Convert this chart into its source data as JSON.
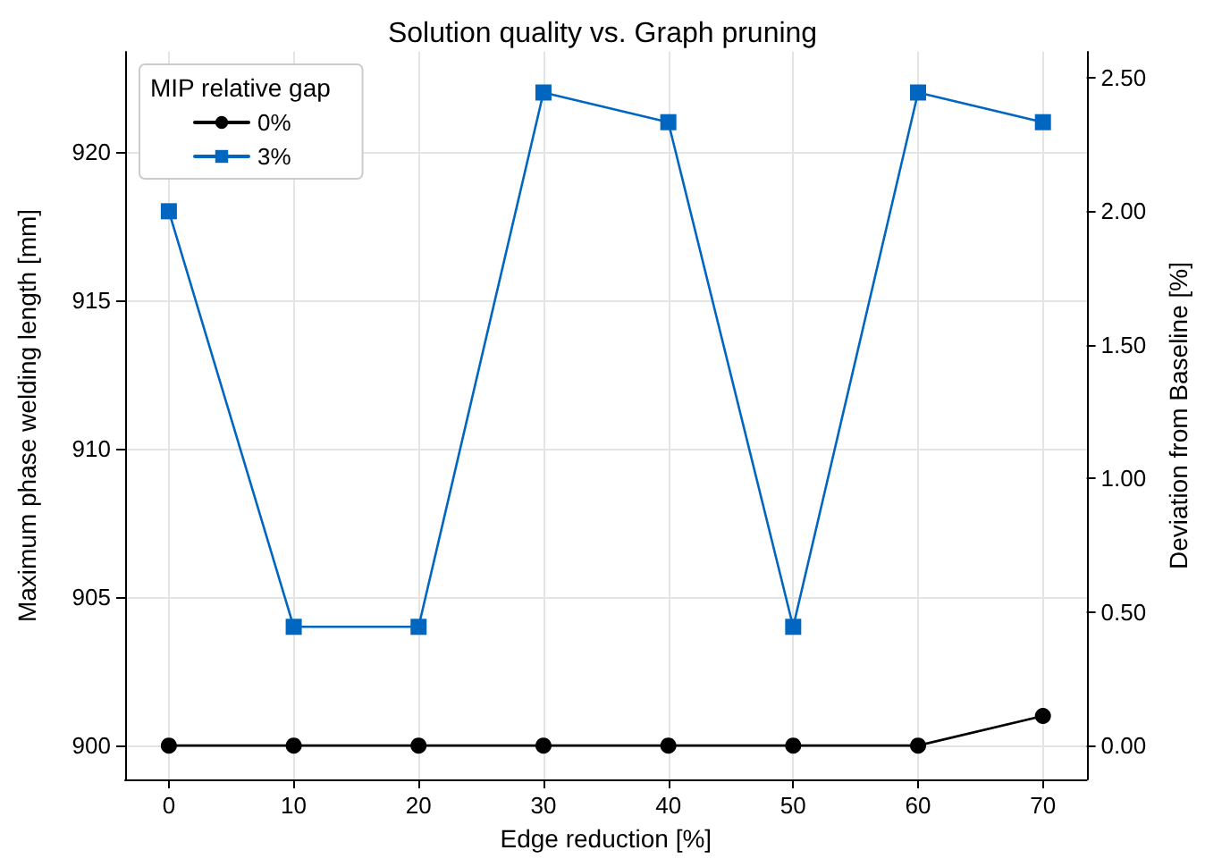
{
  "chart_data": {
    "type": "line",
    "title": "Solution quality vs. Graph pruning",
    "xlabel": "Edge reduction [%]",
    "ylabel": "Maximum phase welding length [mm]",
    "y2label": "Deviation from Baseline [%]",
    "legend_title": "MIP relative gap",
    "x": [
      0,
      10,
      20,
      30,
      40,
      50,
      60,
      70
    ],
    "series": [
      {
        "name": "0%",
        "color": "#000000",
        "marker": "circle",
        "values": [
          900,
          900,
          900,
          900,
          900,
          900,
          900,
          901
        ]
      },
      {
        "name": "3%",
        "color": "#0066c0",
        "marker": "square",
        "values": [
          918,
          904,
          904,
          922,
          921,
          904,
          922,
          921
        ]
      }
    ],
    "xlim": [
      -3.5,
      73.5
    ],
    "xticks": [
      0,
      10,
      20,
      30,
      40,
      50,
      60,
      70
    ],
    "ylim": [
      898.86,
      923.37
    ],
    "yticks": [
      900,
      905,
      910,
      915,
      920
    ],
    "y2lim": [
      -0.127,
      2.597
    ],
    "y2ticks": [
      {
        "value": 0,
        "label": "0.00"
      },
      {
        "value": 0.5,
        "label": "0.50"
      },
      {
        "value": 1,
        "label": "1.00"
      },
      {
        "value": 1.5,
        "label": "1.50"
      },
      {
        "value": 2,
        "label": "2.00"
      },
      {
        "value": 2.5,
        "label": "2.50"
      }
    ],
    "grid": true,
    "legend": "top left",
    "line_style": "solid"
  }
}
